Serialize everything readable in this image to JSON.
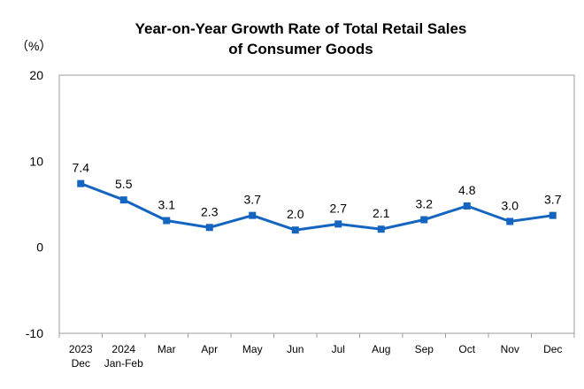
{
  "chart_data": {
    "type": "line",
    "title_lines": [
      "Year-on-Year Growth Rate of Total Retail Sales",
      "of Consumer Goods"
    ],
    "unit_label": "（%）",
    "ylim": [
      -10,
      20
    ],
    "yticks": [
      20,
      10,
      0,
      -10
    ],
    "grid": false,
    "categories": [
      [
        "2023",
        "Dec"
      ],
      [
        "2024",
        "Jan-Feb"
      ],
      [
        "Mar"
      ],
      [
        "Apr"
      ],
      [
        "May"
      ],
      [
        "Jun"
      ],
      [
        "Jul"
      ],
      [
        "Aug"
      ],
      [
        "Sep"
      ],
      [
        "Oct"
      ],
      [
        "Nov"
      ],
      [
        "Dec"
      ]
    ],
    "series": [
      {
        "values": [
          7.4,
          5.5,
          3.1,
          2.3,
          3.7,
          2.0,
          2.7,
          2.1,
          3.2,
          4.8,
          3.0,
          3.7
        ],
        "labels": [
          "7.4",
          "5.5",
          "3.1",
          "2.3",
          "3.7",
          "2.0",
          "2.7",
          "2.1",
          "3.2",
          "4.8",
          "3.0",
          "3.7"
        ],
        "color": "#1565C0"
      }
    ],
    "axis_color": "#9E9E9E"
  }
}
